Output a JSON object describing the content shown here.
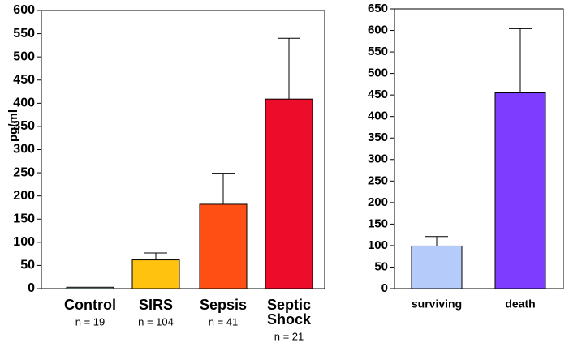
{
  "chart_data": [
    {
      "type": "bar",
      "title": "",
      "xlabel": "",
      "ylabel": "pg/ml",
      "ylim": [
        0,
        600
      ],
      "yticks": [
        0,
        50,
        100,
        150,
        200,
        250,
        300,
        350,
        400,
        450,
        500,
        550,
        600
      ],
      "grid": false,
      "error_bars": true,
      "categories": [
        {
          "lines": [
            "Control"
          ],
          "n": "n = 19"
        },
        {
          "lines": [
            "SIRS"
          ],
          "n": "n = 104"
        },
        {
          "lines": [
            "Sepsis"
          ],
          "n": "n = 41"
        },
        {
          "lines": [
            "Septic",
            "Shock"
          ],
          "n": "n = 21"
        }
      ],
      "values": [
        3,
        62,
        182,
        409
      ],
      "errors": [
        0,
        15,
        67,
        131
      ],
      "colors": [
        "#b7d3c9",
        "#ffc20e",
        "#ff4f14",
        "#ee0c2b"
      ]
    },
    {
      "type": "bar",
      "title": "",
      "xlabel": "",
      "ylabel": "",
      "ylim": [
        0,
        650
      ],
      "yticks": [
        0,
        50,
        100,
        150,
        200,
        250,
        300,
        350,
        400,
        450,
        500,
        550,
        600,
        650
      ],
      "grid": false,
      "error_bars": true,
      "categories": [
        {
          "lines": [
            "surviving"
          ]
        },
        {
          "lines": [
            "death"
          ]
        }
      ],
      "values": [
        99,
        455
      ],
      "errors": [
        22,
        149
      ],
      "colors": [
        "#b5ccfb",
        "#7d3cff"
      ]
    }
  ]
}
